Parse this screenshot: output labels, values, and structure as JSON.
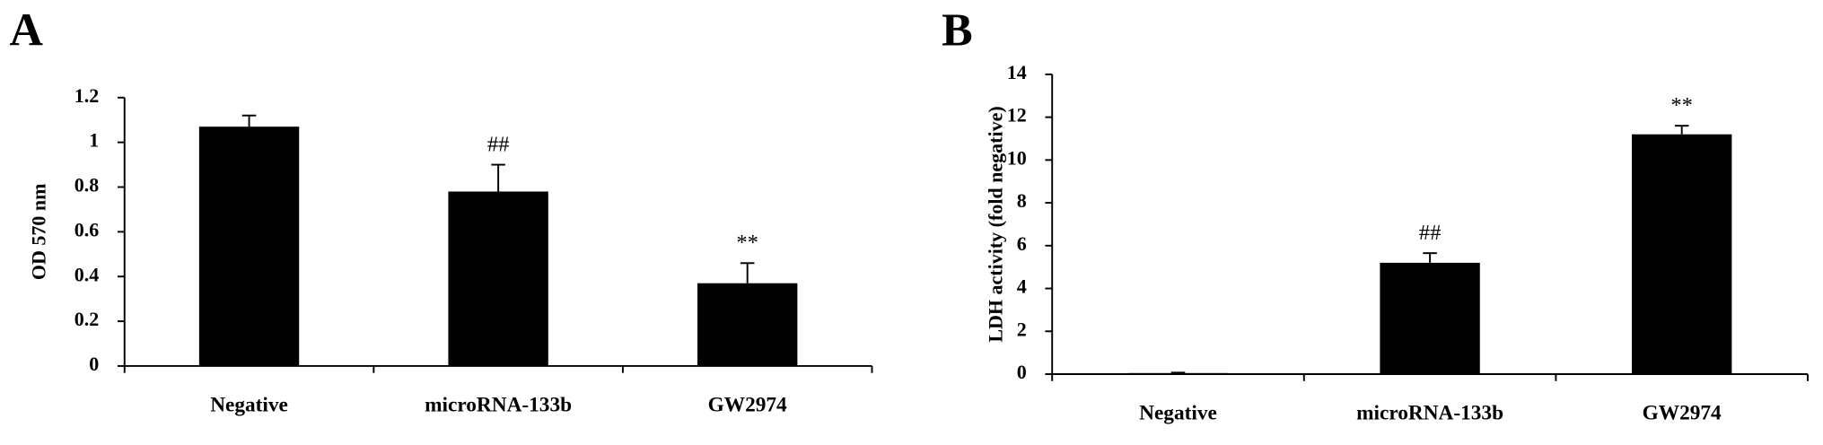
{
  "chart_data": [
    {
      "type": "bar",
      "panel": "A",
      "ylabel": "OD 570 nm",
      "categories": [
        "Negative",
        "microRNA-133b",
        "GW2974"
      ],
      "values": [
        1.07,
        0.78,
        0.37
      ],
      "errors": [
        0.05,
        0.12,
        0.09
      ],
      "bar_labels": [
        null,
        "##",
        "**"
      ],
      "color": "#000000",
      "ylim": [
        0,
        1.2
      ],
      "yticks": [
        0,
        0.2,
        0.4,
        0.6,
        0.8,
        1,
        1.2
      ]
    },
    {
      "type": "bar",
      "panel": "B",
      "ylabel": "LDH activity (fold negative)",
      "categories": [
        "Negative",
        "microRNA-133b",
        "GW2974"
      ],
      "values": [
        0.05,
        5.2,
        11.2
      ],
      "errors": [
        0.02,
        0.45,
        0.4
      ],
      "bar_labels": [
        null,
        "##",
        "**"
      ],
      "color": "#000000",
      "ylim": [
        0,
        14
      ],
      "yticks": [
        0,
        2,
        4,
        6,
        8,
        10,
        12,
        14
      ]
    }
  ]
}
